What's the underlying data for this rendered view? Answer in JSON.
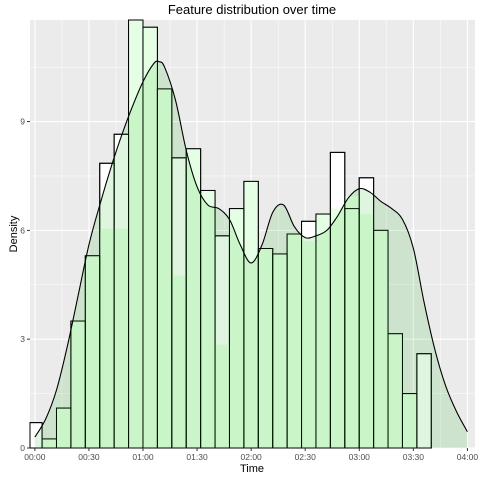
{
  "chart_data": {
    "type": "bar",
    "title": "Feature distribution over time",
    "xlabel": "Time",
    "ylabel": "Density",
    "x_ticks": [
      "00:00",
      "00:30",
      "01:00",
      "01:30",
      "02:00",
      "02:30",
      "03:00",
      "03:30",
      "04:00"
    ],
    "x_tick_hours": [
      0,
      0.5,
      1,
      1.5,
      2,
      2.5,
      3,
      3.5,
      4
    ],
    "y_ticks": [
      "0",
      "3",
      "6",
      "9"
    ],
    "y_tick_values": [
      0,
      3,
      6,
      9
    ],
    "xlim_hours": [
      -0.045,
      4.07
    ],
    "ylim": [
      0,
      11.8
    ],
    "grid": true,
    "panel_color": "#ebebeb",
    "grid_color": "#ffffff",
    "histogram": {
      "bin_width_hours": 0.1333,
      "bin_start_hours": -0.0667,
      "bar_stroke": "#000000",
      "densities": [
        0.7,
        0.25,
        1.1,
        3.5,
        5.3,
        7.85,
        8.65,
        11.8,
        11.6,
        9.9,
        8.0,
        8.25,
        7.1,
        5.85,
        6.6,
        7.35,
        5.5,
        5.35,
        5.9,
        6.25,
        6.45,
        8.15,
        6.6,
        7.45,
        6.0,
        3.15,
        1.5,
        2.6
      ],
      "fill_densities": [
        0.0,
        0.25,
        1.1,
        3.5,
        5.3,
        6.05,
        6.05,
        11.8,
        11.6,
        9.9,
        4.75,
        8.25,
        7.1,
        2.85,
        6.6,
        7.35,
        5.5,
        5.35,
        5.9,
        5.7,
        6.45,
        6.6,
        6.95,
        6.45,
        6.0,
        3.15,
        1.5,
        0.0
      ],
      "fill_color": "#e5ffe5"
    },
    "density_curve": {
      "x_hours": [
        0.0,
        0.1,
        0.2,
        0.3,
        0.4,
        0.5,
        0.6,
        0.7,
        0.8,
        0.9,
        1.0,
        1.1,
        1.15,
        1.2,
        1.3,
        1.4,
        1.5,
        1.6,
        1.7,
        1.8,
        1.9,
        2.0,
        2.1,
        2.2,
        2.3,
        2.4,
        2.5,
        2.6,
        2.7,
        2.8,
        2.9,
        3.0,
        3.1,
        3.2,
        3.3,
        3.4,
        3.5,
        3.6,
        3.7,
        3.8,
        3.9,
        4.0
      ],
      "y": [
        0.3,
        0.8,
        1.6,
        2.8,
        4.2,
        5.6,
        6.7,
        7.7,
        8.6,
        9.4,
        10.1,
        10.6,
        10.65,
        10.5,
        9.6,
        8.2,
        7.2,
        6.7,
        6.6,
        6.3,
        5.6,
        5.1,
        5.6,
        6.5,
        6.7,
        6.1,
        5.8,
        5.85,
        6.0,
        6.4,
        6.9,
        7.15,
        7.05,
        6.8,
        6.6,
        6.3,
        5.5,
        4.0,
        2.7,
        1.7,
        1.0,
        0.45
      ],
      "stroke": "#000000",
      "fill_color": "#00aa00",
      "fill_opacity": 0.12
    }
  }
}
